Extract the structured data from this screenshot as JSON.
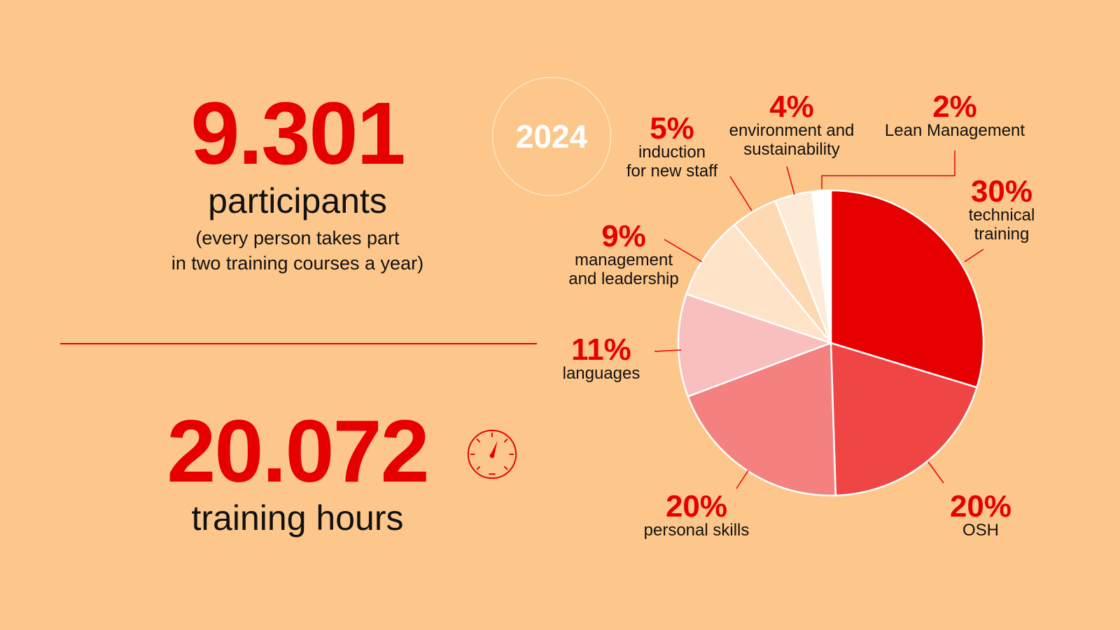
{
  "stats": {
    "participants_value": "9.301",
    "participants_label": "participants",
    "participants_note_line1": "(every person takes part",
    "participants_note_line2": "in two training courses a year)",
    "hours_value": "20.072",
    "hours_label": "training hours",
    "gauge_icon": "gauge-icon"
  },
  "year_badge": "2024",
  "colors": {
    "background": "#fdc78b",
    "accent": "#e60000",
    "slices": [
      "#e60000",
      "#f04545",
      "#f48080",
      "#f9bfbf",
      "#fee3c8",
      "#fdd8b0",
      "#fdebd8",
      "#ffffff"
    ]
  },
  "chart_data": {
    "type": "pie",
    "title": "",
    "slices": [
      {
        "label": "technical training",
        "label_lines": [
          "technical",
          "training"
        ],
        "value": 30,
        "pct_text": "30%"
      },
      {
        "label": "OSH",
        "label_lines": [
          "OSH"
        ],
        "value": 20,
        "pct_text": "20%"
      },
      {
        "label": "personal skills",
        "label_lines": [
          "personal skills"
        ],
        "value": 20,
        "pct_text": "20%"
      },
      {
        "label": "languages",
        "label_lines": [
          "languages"
        ],
        "value": 11,
        "pct_text": "11%"
      },
      {
        "label": "management and leadership",
        "label_lines": [
          "management",
          "and leadership"
        ],
        "value": 9,
        "pct_text": "9%"
      },
      {
        "label": "induction for new staff",
        "label_lines": [
          "induction",
          "for new staff"
        ],
        "value": 5,
        "pct_text": "5%"
      },
      {
        "label": "environment and sustainability",
        "label_lines": [
          "environment and",
          "sustainability"
        ],
        "value": 4,
        "pct_text": "4%"
      },
      {
        "label": "Lean Management",
        "label_lines": [
          "Lean Management"
        ],
        "value": 2,
        "pct_text": "2%"
      }
    ]
  }
}
